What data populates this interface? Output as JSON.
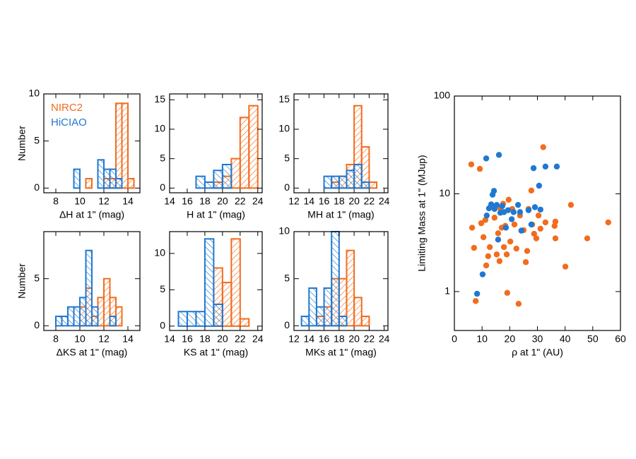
{
  "chart_data": [
    {
      "type": "histogram",
      "xlabel": "ΔH at 1\" (mag)",
      "ylabel": "Number",
      "legend": "upper left",
      "bins": [
        7,
        7.5,
        8,
        8.5,
        9,
        9.5,
        10,
        10.5,
        11,
        11.5,
        12,
        12.5,
        13,
        13.5,
        14,
        14.5,
        15
      ],
      "series": [
        {
          "name": "NIRC2",
          "color": "#f26c1d",
          "hatch": "\\",
          "values": [
            0,
            0,
            0,
            0,
            0,
            0,
            0,
            1,
            0,
            0,
            1,
            1,
            9,
            9,
            1,
            0
          ]
        },
        {
          "name": "HiCIAO",
          "color": "#1f78d1",
          "hatch": "/",
          "values": [
            0,
            0,
            0,
            0,
            0,
            2,
            0,
            0,
            0,
            3,
            2,
            2,
            1,
            0,
            0,
            0
          ]
        }
      ],
      "xlim": [
        7,
        15
      ],
      "ylim": [
        -0.5,
        10
      ],
      "xticks": [
        8,
        10,
        12,
        14
      ],
      "yticks": [
        0,
        5,
        10
      ]
    },
    {
      "type": "histogram",
      "xlabel": "H at 1\" (mag)",
      "bins": [
        14,
        15,
        16,
        17,
        18,
        19,
        20,
        21,
        22,
        23,
        24
      ],
      "series": [
        {
          "color": "#f26c1d",
          "hatch": "\\",
          "values": [
            0,
            0,
            0,
            0,
            0,
            1,
            2,
            5,
            12,
            14
          ]
        },
        {
          "color": "#1f78d1",
          "hatch": "/",
          "values": [
            0,
            0,
            0,
            2,
            1,
            3,
            4,
            0,
            0,
            0
          ]
        }
      ],
      "xlim": [
        14,
        24.5
      ],
      "ylim": [
        -0.8,
        16
      ],
      "xticks": [
        14,
        16,
        18,
        20,
        22,
        24
      ],
      "yticks": [
        0,
        5,
        10,
        15
      ]
    },
    {
      "type": "histogram",
      "xlabel": "MH at 1\" (mag)",
      "bins": [
        12,
        13,
        14,
        15,
        16,
        17,
        18,
        19,
        20,
        21,
        22,
        23,
        24
      ],
      "series": [
        {
          "color": "#f26c1d",
          "hatch": "\\",
          "values": [
            0,
            0,
            0,
            0,
            0,
            1,
            2,
            4,
            14,
            7,
            1,
            0
          ]
        },
        {
          "color": "#1f78d1",
          "hatch": "/",
          "values": [
            0,
            0,
            0,
            0,
            2,
            2,
            2,
            3,
            4,
            1,
            0,
            0
          ]
        }
      ],
      "xlim": [
        12,
        24.5
      ],
      "ylim": [
        -0.8,
        16
      ],
      "xticks": [
        12,
        14,
        16,
        18,
        20,
        22,
        24
      ],
      "yticks": [
        0,
        5,
        10,
        15
      ]
    },
    {
      "type": "histogram",
      "xlabel": "ΔKS at 1\" (mag)",
      "ylabel": "Number",
      "bins": [
        7,
        7.5,
        8,
        8.5,
        9,
        9.5,
        10,
        10.5,
        11,
        11.5,
        12,
        12.5,
        13,
        13.5,
        14,
        14.5,
        15
      ],
      "series": [
        {
          "color": "#f26c1d",
          "hatch": "\\",
          "values": [
            0,
            0,
            0,
            0,
            0,
            0,
            2,
            4,
            1,
            3,
            5,
            3,
            2,
            0,
            0,
            0
          ]
        },
        {
          "color": "#1f78d1",
          "hatch": "/",
          "values": [
            0,
            0,
            1,
            1,
            2,
            2,
            3,
            8,
            2,
            0,
            0,
            1,
            0,
            0,
            0,
            0
          ]
        }
      ],
      "xlim": [
        7,
        15
      ],
      "ylim": [
        -0.5,
        10
      ],
      "xticks": [
        8,
        10,
        12,
        14
      ],
      "yticks": [
        0,
        5
      ]
    },
    {
      "type": "histogram",
      "xlabel": "KS at 1\" (mag)",
      "bins": [
        14,
        15,
        16,
        17,
        18,
        19,
        20,
        21,
        22,
        23,
        24
      ],
      "series": [
        {
          "color": "#f26c1d",
          "hatch": "\\",
          "values": [
            0,
            0,
            0,
            0,
            0,
            8,
            6,
            12,
            1,
            0
          ]
        },
        {
          "color": "#1f78d1",
          "hatch": "/",
          "values": [
            0,
            2,
            2,
            2,
            12,
            3,
            0,
            0,
            0,
            0
          ]
        }
      ],
      "xlim": [
        14,
        24.5
      ],
      "ylim": [
        -0.6,
        13
      ],
      "xticks": [
        14,
        16,
        18,
        20,
        22,
        24
      ],
      "yticks": [
        0,
        5,
        10
      ]
    },
    {
      "type": "histogram",
      "xlabel": "MKs at 1\" (mag)",
      "bins": [
        12,
        13,
        14,
        15,
        16,
        17,
        18,
        19,
        20,
        21,
        22,
        23,
        24
      ],
      "series": [
        {
          "color": "#f26c1d",
          "hatch": "\\",
          "values": [
            0,
            0,
            0,
            1,
            2,
            5,
            5,
            8,
            3,
            1,
            0,
            0
          ]
        },
        {
          "color": "#1f78d1",
          "hatch": "/",
          "values": [
            0,
            1,
            4,
            2,
            4,
            10,
            1,
            0,
            0,
            0,
            0,
            0
          ]
        }
      ],
      "xlim": [
        12,
        24.5
      ],
      "ylim": [
        -0.5,
        10
      ],
      "xticks": [
        12,
        14,
        16,
        18,
        20,
        22,
        24
      ],
      "yticks": [
        0,
        5,
        10
      ]
    },
    {
      "type": "scatter",
      "xlabel": "ρ at 1\" (AU)",
      "ylabel": "Limiting Mass at 1\" (MJup)",
      "log_y": true,
      "series": [
        {
          "color": "#f26c1d",
          "x": [
            6.1,
            9.2,
            6.4,
            7.1,
            7.7,
            9.7,
            10.5,
            11.2,
            11.5,
            12.2,
            12.8,
            13.5,
            14.5,
            15.3,
            15.8,
            16.3,
            16.6,
            17.1,
            17.6,
            17.9,
            18.4,
            18.9,
            19.1,
            19.6,
            20.2,
            20.9,
            21.7,
            22.4,
            23.2,
            23.7,
            25,
            25.8,
            26.3,
            26.8,
            27.8,
            28.1,
            28.8,
            29.6,
            30.4,
            31.1,
            32.1,
            32.9,
            36.2,
            36.5,
            36.5,
            42.1,
            40.1,
            48,
            55.6
          ],
          "values": [
            20,
            18,
            4.5,
            2.8,
            0.8,
            5,
            3.6,
            5.4,
            1.85,
            2.3,
            2.85,
            7.5,
            5.7,
            2.4,
            3.95,
            2.05,
            7.1,
            4.5,
            7.9,
            2.85,
            4.7,
            2.4,
            0.97,
            8.7,
            3.25,
            7,
            4.85,
            2.75,
            0.75,
            6,
            4.25,
            2,
            2.6,
            7,
            10.8,
            4.85,
            3.9,
            3.5,
            6,
            4.4,
            30,
            5.1,
            4.7,
            3.5,
            5.2,
            7.7,
            1.8,
            3.5,
            5.1
          ]
        },
        {
          "color": "#1f78d1",
          "x": [
            8.2,
            10.2,
            11.5,
            11.7,
            12.5,
            13.3,
            13.8,
            14.3,
            14.5,
            15.3,
            15.8,
            16.1,
            16.6,
            17.3,
            17.9,
            18.6,
            19.4,
            20.7,
            21.4,
            23,
            23.7,
            24.2,
            26.8,
            27.8,
            28.6,
            29.1,
            30.6,
            31.1,
            32.9,
            37
          ],
          "values": [
            0.95,
            1.5,
            23,
            6,
            7.1,
            7.8,
            9.8,
            10.7,
            7,
            7.7,
            3.4,
            25,
            6.4,
            7.5,
            6.5,
            4.5,
            6.8,
            5.5,
            6.5,
            7.7,
            6.5,
            4.2,
            6.8,
            4.85,
            18.3,
            7.3,
            12.1,
            6.9,
            19,
            19
          ]
        }
      ],
      "xlim": [
        0,
        60
      ],
      "ylim": [
        0.4,
        100
      ],
      "xticks": [
        0,
        10,
        20,
        30,
        40,
        50,
        60
      ],
      "yticks": [
        1,
        10,
        100
      ]
    }
  ]
}
